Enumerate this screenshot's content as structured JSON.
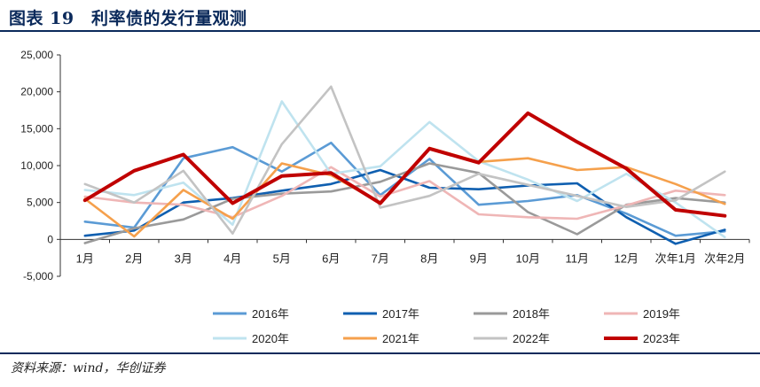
{
  "header": {
    "title": "图表 19　利率债的发行量观测"
  },
  "footer": {
    "source": "资料来源：wind，华创证券"
  },
  "colors": {
    "2016年": "#5b9bd5",
    "2017年": "#0f5fb0",
    "2018年": "#9a9a9a",
    "2019年": "#efb6b6",
    "2020年": "#bfe3ef",
    "2021年": "#f5a04c",
    "2022年": "#c3c3c3",
    "2023年": "#c00000"
  },
  "chart_data": {
    "type": "line",
    "title": "",
    "xlabel": "",
    "ylabel": "",
    "ylim": [
      -5000,
      25000
    ],
    "yticks": [
      -5000,
      0,
      5000,
      10000,
      15000,
      20000,
      25000
    ],
    "ytick_labels": [
      "-5,000",
      "0",
      "5,000",
      "10,000",
      "15,000",
      "20,000",
      "25,000"
    ],
    "grid": false,
    "legend_position": "bottom",
    "categories": [
      "1月",
      "2月",
      "3月",
      "4月",
      "5月",
      "6月",
      "7月",
      "8月",
      "9月",
      "10月",
      "11月",
      "12月",
      "次年1月",
      "次年2月"
    ],
    "series": [
      {
        "name": "2016年",
        "values": [
          2400,
          1600,
          11000,
          12500,
          9200,
          13100,
          6000,
          10900,
          4700,
          5200,
          6000,
          3500,
          500,
          1100
        ]
      },
      {
        "name": "2017年",
        "values": [
          500,
          1200,
          5000,
          5600,
          6600,
          7500,
          9400,
          7000,
          6800,
          7300,
          7600,
          3000,
          -600,
          1300
        ]
      },
      {
        "name": "2018年",
        "values": [
          -500,
          1500,
          2700,
          5500,
          6200,
          6500,
          7800,
          10300,
          9000,
          3700,
          700,
          4700,
          5600,
          5000
        ]
      },
      {
        "name": "2019年",
        "values": [
          5800,
          5000,
          4700,
          3000,
          5900,
          9800,
          5800,
          7900,
          3400,
          3000,
          2800,
          4600,
          6600,
          6000
        ]
      },
      {
        "name": "2020年",
        "values": [
          6700,
          6000,
          7700,
          2000,
          18700,
          8900,
          9900,
          15900,
          10600,
          8100,
          5200,
          8900,
          5000,
          300
        ]
      },
      {
        "name": "2021年",
        "values": [
          5500,
          400,
          6700,
          2800,
          10300,
          8700,
          5000,
          12400,
          10500,
          11000,
          9400,
          9800,
          7500,
          4800
        ]
      },
      {
        "name": "2022年",
        "values": [
          7500,
          5000,
          9300,
          800,
          12900,
          20700,
          4300,
          5900,
          8900,
          7400,
          5900,
          4400,
          5300,
          9200
        ]
      },
      {
        "name": "2023年",
        "values": [
          5300,
          9300,
          11500,
          4900,
          8600,
          9000,
          4900,
          12300,
          10400,
          17100,
          13200,
          9600,
          4000,
          3200
        ]
      }
    ]
  }
}
